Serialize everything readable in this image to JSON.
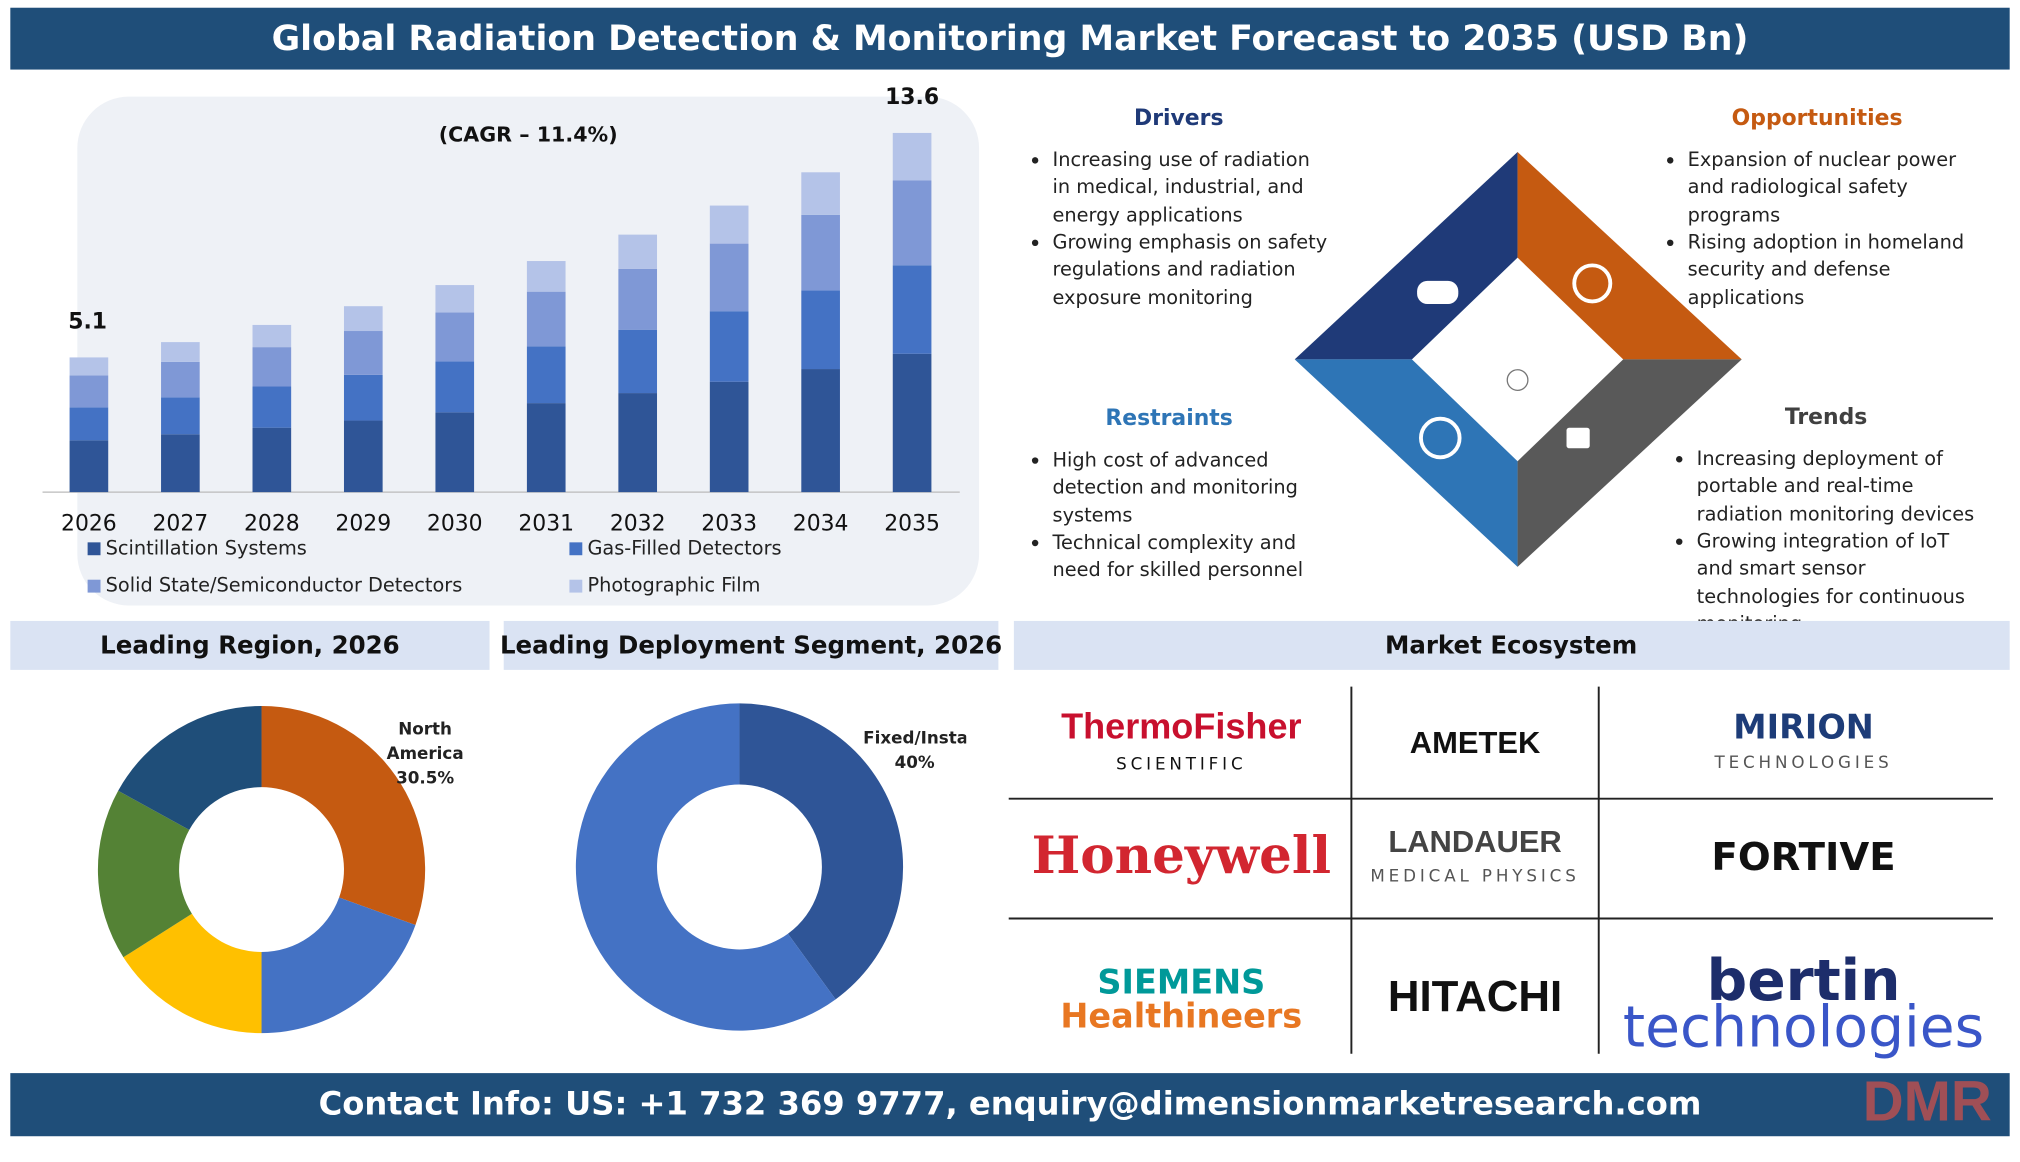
{
  "header": {
    "title": "Global Radiation Detection & Monitoring Market Forecast to 2035 (USD Bn)"
  },
  "chart_data": [
    {
      "type": "bar",
      "stacked": true,
      "annotation": "(CAGR – 11.4%)",
      "categories": [
        "2026",
        "2027",
        "2028",
        "2029",
        "2030",
        "2031",
        "2032",
        "2033",
        "2034",
        "2035"
      ],
      "series": [
        {
          "name": "Scintillation Systems",
          "color": "#2f5597",
          "values": [
            1.96,
            2.19,
            2.44,
            2.71,
            3.02,
            3.37,
            3.75,
            4.18,
            4.66,
            5.24
          ]
        },
        {
          "name": "Gas-Filled Detectors",
          "color": "#4472c4",
          "values": [
            1.25,
            1.4,
            1.56,
            1.73,
            1.93,
            2.15,
            2.4,
            2.67,
            2.98,
            3.35
          ]
        },
        {
          "name": "Solid State/Semiconductor Detectors",
          "color": "#7f98d6",
          "values": [
            1.21,
            1.34,
            1.49,
            1.66,
            1.85,
            2.07,
            2.3,
            2.56,
            2.86,
            3.21
          ]
        },
        {
          "name": "Photographic Film",
          "color": "#b4c3e8",
          "values": [
            0.68,
            0.75,
            0.84,
            0.94,
            1.04,
            1.16,
            1.3,
            1.44,
            1.61,
            1.8
          ]
        }
      ],
      "total_labels": [
        5.1,
        null,
        null,
        null,
        null,
        null,
        null,
        null,
        null,
        13.6
      ],
      "ylim": [
        0,
        14
      ],
      "grid": false,
      "legend": "bottom"
    },
    {
      "type": "pie",
      "donut": true,
      "title": "Leading Region, 2026",
      "categories": [
        "North America",
        null,
        null,
        null,
        null
      ],
      "values": [
        30.5,
        19.5,
        16,
        17,
        17
      ],
      "value_labels": [
        "30.5%",
        null,
        null,
        null,
        null
      ],
      "colors": [
        "#c55a11",
        "#4472c4",
        "#ffc000",
        "#548235",
        "#1f4e79"
      ]
    },
    {
      "type": "pie",
      "donut": true,
      "title": "Leading Deployment Segment, 2026",
      "categories": [
        "Fixed/Installed",
        null
      ],
      "values": [
        40,
        60
      ],
      "value_labels": [
        "40%",
        null
      ],
      "colors": [
        "#2f5597",
        "#4472c4"
      ]
    }
  ],
  "factors": {
    "drivers": {
      "title": "Drivers",
      "items": [
        "Increasing use of radiation in medical, industrial, and energy applications",
        "Growing emphasis on safety regulations and radiation exposure monitoring"
      ]
    },
    "opportunities": {
      "title": "Opportunities",
      "items": [
        "Expansion of nuclear power and radiological safety programs",
        "Rising adoption in homeland security and defense applications"
      ]
    },
    "restraints": {
      "title": "Restraints",
      "items": [
        "High cost of advanced detection and monitoring systems",
        "Technical complexity and need for skilled personnel"
      ]
    },
    "trends": {
      "title": "Trends",
      "items": [
        "Increasing deployment of portable and real-time radiation monitoring devices",
        "Growing integration of IoT and smart sensor technologies for continuous monitoring"
      ]
    }
  },
  "ecosystem": {
    "title": "Market Ecosystem",
    "companies": [
      {
        "name": "ThermoFisher",
        "sub": "SCIENTIFIC"
      },
      {
        "name": "AMETEK"
      },
      {
        "name": "MIRION",
        "sub": "TECHNOLOGIES"
      },
      {
        "name": "Honeywell"
      },
      {
        "name": "LANDAUER",
        "sub": "MEDICAL PHYSICS"
      },
      {
        "name": "FORTIVE"
      },
      {
        "name": "SIEMENS",
        "sub": "Healthineers"
      },
      {
        "name": "HITACHI"
      },
      {
        "name": "bertin",
        "sub": "technologies"
      }
    ]
  },
  "contact": "Contact Info: US: +1 732 369 9777, enquiry@dimensionmarketresearch.com",
  "logo": "DMR"
}
